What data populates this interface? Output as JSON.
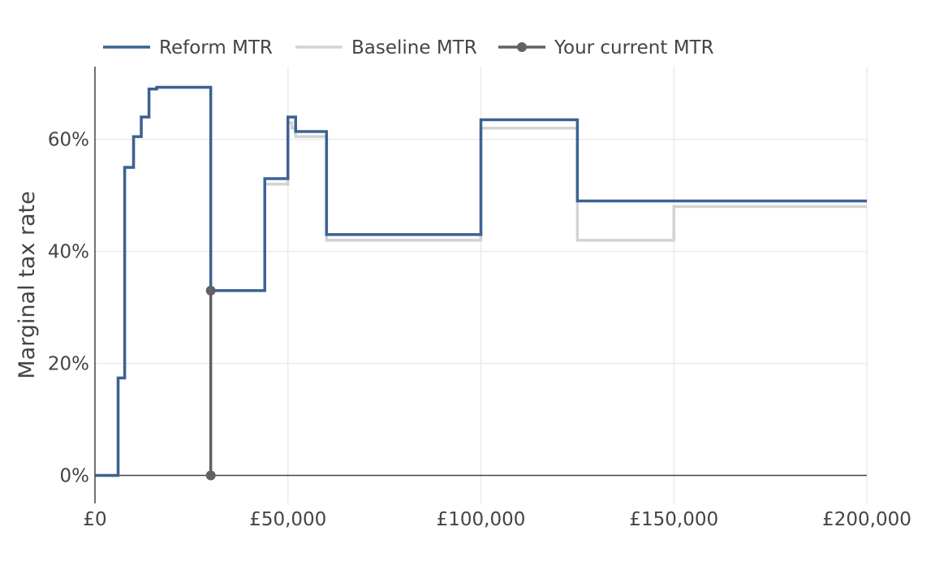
{
  "chart_data": {
    "type": "line",
    "line_shape": "step",
    "xlabel": "",
    "ylabel": "Marginal tax rate",
    "xlim": [
      0,
      200000
    ],
    "ylim": [
      -0.05,
      0.73
    ],
    "x_ticks": [
      {
        "value": 0,
        "label": "£0"
      },
      {
        "value": 50000,
        "label": "£50,000"
      },
      {
        "value": 100000,
        "label": "£100,000"
      },
      {
        "value": 150000,
        "label": "£150,000"
      },
      {
        "value": 200000,
        "label": "£200,000"
      }
    ],
    "y_ticks": [
      {
        "value": 0,
        "label": "0%"
      },
      {
        "value": 0.2,
        "label": "20%"
      },
      {
        "value": 0.4,
        "label": "40%"
      },
      {
        "value": 0.6,
        "label": "60%"
      }
    ],
    "grid": true,
    "legend_position": "top-left",
    "series": [
      {
        "name": "Baseline MTR",
        "color": "#d3d3d3",
        "x": [
          0,
          6000,
          7700,
          10000,
          12000,
          14000,
          16000,
          30000,
          44000,
          50000,
          51000,
          52000,
          60000,
          100000,
          125000,
          150000,
          200000
        ],
        "y": [
          0,
          0.174,
          0.55,
          0.605,
          0.64,
          0.69,
          0.693,
          0.33,
          0.52,
          0.63,
          0.62,
          0.605,
          0.42,
          0.62,
          0.42,
          0.48,
          0.48
        ]
      },
      {
        "name": "Reform MTR",
        "color": "#3c6293",
        "x": [
          0,
          6000,
          7700,
          10000,
          12000,
          14000,
          16000,
          30000,
          44000,
          50000,
          52000,
          60000,
          100000,
          125000,
          200000
        ],
        "y": [
          0,
          0.174,
          0.55,
          0.605,
          0.64,
          0.69,
          0.693,
          0.33,
          0.53,
          0.64,
          0.614,
          0.43,
          0.635,
          0.49,
          0.49
        ]
      },
      {
        "name": "Your current MTR",
        "color": "#616161",
        "x": [
          30000,
          30000
        ],
        "y": [
          0,
          0.33
        ]
      }
    ]
  }
}
